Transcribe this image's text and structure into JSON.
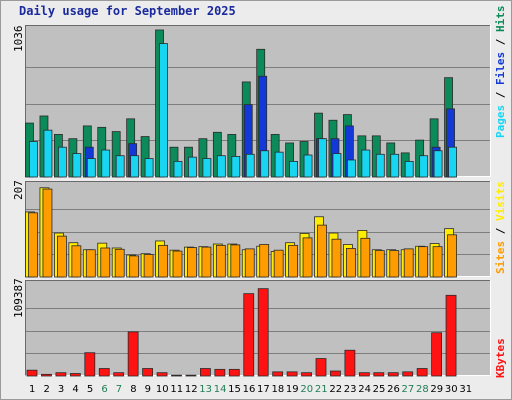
{
  "title": "Daily usage for September 2025",
  "panels": {
    "top": {
      "max_label": "1036",
      "legend": {
        "pages": "Pages",
        "files": "Files",
        "hits": "Hits",
        "sep": " / "
      }
    },
    "mid": {
      "max_label": "207",
      "legend": {
        "sites": "Sites",
        "visits": "Visits",
        "sep": " / "
      }
    },
    "bot": {
      "max_label": "109387",
      "legend": {
        "kbytes": "KBytes"
      }
    }
  },
  "colors": {
    "hits": "#0c8a5a",
    "files": "#1238d8",
    "pages": "#18d6f2",
    "sites": "#ff9c00",
    "visits": "#ffec00",
    "kbytes": "#ff1212",
    "panel_bg": "#c0c0c0",
    "weekday_label": "#000000",
    "weekend_label": "#1f7e55",
    "title": "#1a2a9c"
  },
  "chart_data": [
    {
      "type": "bar",
      "panel": "hits-files-pages",
      "categories": [
        "1",
        "2",
        "3",
        "4",
        "5",
        "6",
        "7",
        "8",
        "9",
        "10",
        "11",
        "12",
        "13",
        "14",
        "15",
        "16",
        "17",
        "18",
        "19",
        "20",
        "21",
        "22",
        "23",
        "24",
        "25",
        "26",
        "27",
        "28",
        "29",
        "30",
        "31"
      ],
      "ylim": [
        0,
        1036
      ],
      "series": [
        {
          "name": "Hits",
          "values": [
            380,
            430,
            300,
            270,
            360,
            350,
            320,
            410,
            285,
            1036,
            210,
            210,
            270,
            315,
            300,
            670,
            900,
            300,
            240,
            250,
            450,
            400,
            440,
            290,
            290,
            240,
            170,
            260,
            410,
            700,
            0
          ]
        },
        {
          "name": "Files",
          "values": [
            0,
            0,
            0,
            0,
            210,
            0,
            0,
            235,
            0,
            0,
            0,
            0,
            0,
            0,
            0,
            510,
            710,
            0,
            0,
            0,
            270,
            270,
            360,
            0,
            0,
            0,
            0,
            0,
            210,
            480,
            0
          ]
        },
        {
          "name": "Pages",
          "values": [
            250,
            330,
            210,
            165,
            130,
            190,
            150,
            150,
            130,
            940,
            110,
            140,
            130,
            150,
            145,
            160,
            185,
            175,
            110,
            155,
            270,
            165,
            120,
            190,
            160,
            160,
            110,
            150,
            185,
            210,
            0
          ]
        }
      ]
    },
    {
      "type": "bar",
      "panel": "visits-sites",
      "categories": [
        "1",
        "2",
        "3",
        "4",
        "5",
        "6",
        "7",
        "8",
        "9",
        "10",
        "11",
        "12",
        "13",
        "14",
        "15",
        "16",
        "17",
        "18",
        "19",
        "20",
        "21",
        "22",
        "23",
        "24",
        "25",
        "26",
        "27",
        "28",
        "29",
        "30",
        "31"
      ],
      "ylim": [
        0,
        207
      ],
      "series": [
        {
          "name": "Visits",
          "values": [
            148,
            203,
            100,
            78,
            62,
            77,
            66,
            50,
            53,
            82,
            61,
            68,
            69,
            75,
            75,
            62,
            70,
            58,
            78,
            99,
            137,
            100,
            74,
            106,
            62,
            62,
            62,
            70,
            76,
            110,
            0
          ]
        },
        {
          "name": "Sites",
          "values": [
            146,
            200,
            93,
            71,
            62,
            66,
            63,
            48,
            51,
            72,
            59,
            67,
            68,
            72,
            73,
            64,
            74,
            61,
            72,
            89,
            118,
            86,
            65,
            88,
            60,
            60,
            64,
            69,
            69,
            96,
            0
          ]
        }
      ]
    },
    {
      "type": "bar",
      "panel": "kbytes",
      "categories": [
        "1",
        "2",
        "3",
        "4",
        "5",
        "6",
        "7",
        "8",
        "9",
        "10",
        "11",
        "12",
        "13",
        "14",
        "15",
        "16",
        "17",
        "18",
        "19",
        "20",
        "21",
        "22",
        "23",
        "24",
        "25",
        "26",
        "27",
        "28",
        "29",
        "30",
        "31"
      ],
      "ylim": [
        0,
        109387
      ],
      "series": [
        {
          "name": "KBytes",
          "values": [
            7000,
            2000,
            4000,
            3000,
            28000,
            9000,
            4000,
            53000,
            9000,
            4000,
            1000,
            1000,
            9000,
            8000,
            8000,
            99000,
            105000,
            5000,
            5000,
            4000,
            21000,
            6000,
            31000,
            4000,
            4000,
            4000,
            5000,
            9000,
            52000,
            97000,
            0
          ]
        }
      ]
    }
  ]
}
